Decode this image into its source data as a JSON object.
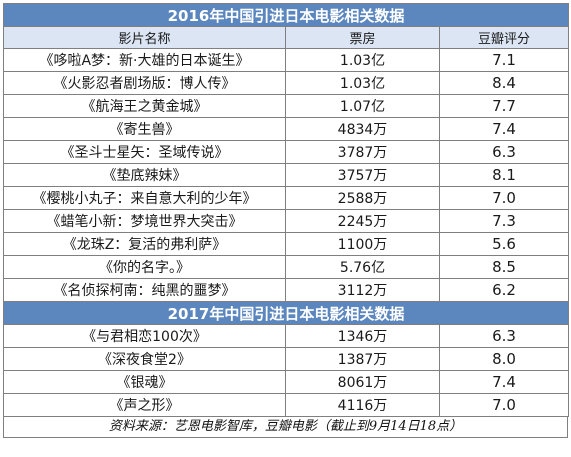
{
  "section_2016": {
    "title": "2016年中国引进日本电影相关数据",
    "headers": [
      "影片名称",
      "票房",
      "豆瓣评分"
    ],
    "rows": [
      {
        "name": "《哆啦A梦：新·大雄的日本诞生》",
        "box": "1.03亿",
        "score": "7.1"
      },
      {
        "name": "《火影忍者剧场版：博人传》",
        "box": "1.03亿",
        "score": "8.4"
      },
      {
        "name": "《航海王之黄金城》",
        "box": "1.07亿",
        "score": "7.7"
      },
      {
        "name": "《寄生兽》",
        "box": "4834万",
        "score": "7.4"
      },
      {
        "name": "《圣斗士星矢：圣域传说》",
        "box": "3787万",
        "score": "6.3"
      },
      {
        "name": "《垫底辣妹》",
        "box": "3757万",
        "score": "8.1"
      },
      {
        "name": "《樱桃小丸子：来自意大利的少年》",
        "box": "2588万",
        "score": "7.0"
      },
      {
        "name": "《蜡笔小新：梦境世界大突击》",
        "box": "2245万",
        "score": "7.3"
      },
      {
        "name": "《龙珠Z：复活的弗利萨》",
        "box": "1100万",
        "score": "5.6"
      },
      {
        "name": "《你的名字。》",
        "box": "5.76亿",
        "score": "8.5"
      },
      {
        "name": "《名侦探柯南：纯黑的噩梦》",
        "box": "3112万",
        "score": "6.2"
      }
    ]
  },
  "section_2017": {
    "title": "2017年中国引进日本电影相关数据",
    "rows": [
      {
        "name": "《与君相恋100次》",
        "box": "1346万",
        "score": "6.3"
      },
      {
        "name": "《深夜食堂2》",
        "box": "1387万",
        "score": "8.0"
      },
      {
        "name": "《银魂》",
        "box": "8061万",
        "score": "7.4"
      },
      {
        "name": "《声之形》",
        "box": "4116万",
        "score": "7.0"
      }
    ]
  },
  "footer": "资料来源：艺恩电影智库，豆瓣电影（截止到9月14日18点）",
  "colors": {
    "title_bg": "#5b86be",
    "header_bg": "#dbe5f3",
    "border": "#7f7f7f"
  }
}
